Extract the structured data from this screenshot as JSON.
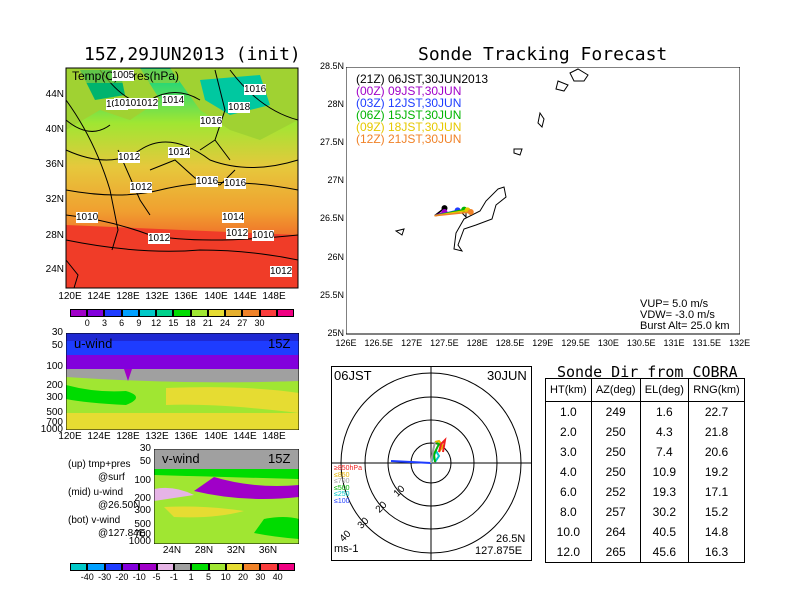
{
  "left": {
    "title": "15Z,29JUN2013 (init)",
    "map_label": "Temp(C)+Pres(hPa)",
    "lat_labels": [
      "44N",
      "40N",
      "36N",
      "32N",
      "28N",
      "24N"
    ],
    "lon_labels": [
      "120E",
      "124E",
      "128E",
      "132E",
      "136E",
      "140E",
      "144E",
      "148E"
    ],
    "isobar_labels": [
      "1005",
      "1012",
      "1010",
      "1012",
      "1014",
      "1018",
      "1016",
      "1016",
      "1012",
      "1014",
      "1012",
      "1016",
      "1016",
      "1010",
      "1014",
      "1012",
      "1012",
      "1010",
      "1012"
    ],
    "temp_colorbar": {
      "ticks": [
        "0",
        "3",
        "6",
        "9",
        "12",
        "15",
        "18",
        "21",
        "24",
        "27",
        "30"
      ],
      "colors": [
        "#a000c8",
        "#8200dc",
        "#1e3cff",
        "#00a0ff",
        "#00c8c8",
        "#00d28c",
        "#00dc00",
        "#a0e632",
        "#e6dc32",
        "#e6af2d",
        "#f08228",
        "#fa3c3c",
        "#f00082"
      ]
    },
    "u_wind": {
      "label": "u-wind",
      "time": "15Z",
      "y_ticks": [
        "30",
        "50",
        "100",
        "200",
        "300",
        "500",
        "700",
        "1000"
      ],
      "x_ticks": [
        "120E",
        "124E",
        "128E",
        "132E",
        "136E",
        "140E",
        "144E",
        "148E"
      ]
    },
    "v_wind": {
      "label": "v-wind",
      "time": "15Z",
      "y_ticks": [
        "30",
        "50",
        "100",
        "200",
        "300",
        "500",
        "700",
        "1000"
      ],
      "x_ticks": [
        "24N",
        "28N",
        "32N",
        "36N"
      ]
    },
    "legend_notes": [
      {
        "a": "(up) tmp+pres",
        "b": "@surf"
      },
      {
        "a": "(mid) u-wind",
        "b": "@26.50N"
      },
      {
        "a": "(bot) v-wind",
        "b": "@127.84E"
      }
    ],
    "wind_colorbar": {
      "ticks": [
        "-40",
        "-30",
        "-20",
        "-10",
        "-5",
        "-1",
        "1",
        "5",
        "10",
        "20",
        "30",
        "40"
      ],
      "colors": [
        "#00c8c8",
        "#00a0ff",
        "#1e3cff",
        "#8200dc",
        "#a000c8",
        "#e6b4e6",
        "#a0a0a0",
        "#00dc00",
        "#a0e632",
        "#e6dc32",
        "#f08228",
        "#fa3c3c",
        "#f00082"
      ]
    }
  },
  "tracking": {
    "title": "Sonde Tracking Forecast",
    "lat_labels": [
      "28.5N",
      "28N",
      "27.5N",
      "27N",
      "26.5N",
      "26N",
      "25.5N",
      "25N"
    ],
    "lon_labels": [
      "126E",
      "126.5E",
      "127E",
      "127.5E",
      "128E",
      "128.5E",
      "129E",
      "129.5E",
      "130E",
      "130.5E",
      "131E",
      "131.5E",
      "132E"
    ],
    "legend": [
      {
        "text": "(21Z) 06JST,30JUN2013",
        "color": "#000000"
      },
      {
        "text": "(00Z) 09JST,30JUN",
        "color": "#a000c8"
      },
      {
        "text": "(03Z) 12JST,30JUN",
        "color": "#1e3cff"
      },
      {
        "text": "(06Z) 15JST,30JUN",
        "color": "#00b400"
      },
      {
        "text": "(09Z) 18JST,30JUN",
        "color": "#e6c800"
      },
      {
        "text": "(12Z) 21JST,30JUN",
        "color": "#f08228"
      }
    ],
    "params": [
      "VUP= 5.0 m/s",
      "VDW= -3.0 m/s",
      "Burst Alt= 25.0 km"
    ]
  },
  "hodograph": {
    "time_left": "06JST",
    "time_right": "30JUN",
    "levels": [
      {
        "text": "≥850hPa",
        "color": "#f01e1e"
      },
      {
        "text": "≤850",
        "color": "#e6b400"
      },
      {
        "text": "≤700",
        "color": "#a0a0a0"
      },
      {
        "text": "≤500",
        "color": "#00b400"
      },
      {
        "text": "≤250",
        "color": "#00c8c8"
      },
      {
        "text": "≤100",
        "color": "#1e3cff"
      }
    ],
    "ring_labels": [
      "10",
      "20",
      "30",
      "40"
    ],
    "unit": "ms-1",
    "loc_lat": "26.5N",
    "loc_lon": "127.875E"
  },
  "sonde_table": {
    "title": "Sonde Dir from COBRA",
    "headers": [
      "HT(km)",
      "AZ(deg)",
      "EL(deg)",
      "RNG(km)"
    ],
    "rows": [
      [
        "1.0",
        "249",
        "1.6",
        "22.7"
      ],
      [
        "2.0",
        "250",
        "4.3",
        "21.8"
      ],
      [
        "3.0",
        "250",
        "7.4",
        "20.6"
      ],
      [
        "4.0",
        "250",
        "10.9",
        "19.2"
      ],
      [
        "6.0",
        "252",
        "19.3",
        "17.1"
      ],
      [
        "8.0",
        "257",
        "30.2",
        "15.2"
      ],
      [
        "10.0",
        "264",
        "40.5",
        "14.8"
      ],
      [
        "12.0",
        "265",
        "45.6",
        "16.3"
      ]
    ]
  },
  "chart_data": [
    {
      "type": "heatmap",
      "title": "15Z,29JUN2013 (init)",
      "subtitle": "Temp(C)+Pres(hPa)",
      "xlim": [
        120,
        149
      ],
      "ylim": [
        22,
        47
      ],
      "colorbar_ticks": [
        0,
        3,
        6,
        9,
        12,
        15,
        18,
        21,
        24,
        27,
        30
      ]
    },
    {
      "type": "heatmap",
      "title": "u-wind 15Z",
      "x_ticks": [
        "120E",
        "124E",
        "128E",
        "132E",
        "136E",
        "140E",
        "144E",
        "148E"
      ],
      "y_ticks": [
        30,
        50,
        100,
        200,
        300,
        500,
        700,
        1000
      ]
    },
    {
      "type": "heatmap",
      "title": "v-wind 15Z",
      "x_ticks": [
        "24N",
        "28N",
        "32N",
        "36N"
      ],
      "y_ticks": [
        30,
        50,
        100,
        200,
        300,
        500,
        700,
        1000
      ],
      "colorbar_ticks": [
        -40,
        -30,
        -20,
        -10,
        -5,
        -1,
        1,
        5,
        10,
        20,
        30,
        40
      ]
    },
    {
      "type": "scatter",
      "title": "Sonde Tracking Forecast",
      "xlim": [
        126,
        132
      ],
      "ylim": [
        25,
        28.5
      ],
      "series": [
        {
          "name": "(21Z) 06JST,30JUN2013",
          "x": [
            127.5
          ],
          "y": [
            26.65
          ]
        },
        {
          "name": "(00Z) 09JST,30JUN",
          "x": [
            127.5
          ],
          "y": [
            26.6
          ]
        },
        {
          "name": "(03Z) 12JST,30JUN",
          "x": [
            127.7
          ],
          "y": [
            26.62
          ]
        },
        {
          "name": "(06Z) 15JST,30JUN",
          "x": [
            127.8
          ],
          "y": [
            26.63
          ]
        },
        {
          "name": "(09Z) 18JST,30JUN",
          "x": [
            127.85
          ],
          "y": [
            26.62
          ]
        },
        {
          "name": "(12Z) 21JST,30JUN",
          "x": [
            127.9
          ],
          "y": [
            26.6
          ]
        }
      ]
    },
    {
      "type": "table",
      "title": "Sonde Dir from COBRA",
      "columns": [
        "HT(km)",
        "AZ(deg)",
        "EL(deg)",
        "RNG(km)"
      ],
      "rows": [
        [
          1.0,
          249,
          1.6,
          22.7
        ],
        [
          2.0,
          250,
          4.3,
          21.8
        ],
        [
          3.0,
          250,
          7.4,
          20.6
        ],
        [
          4.0,
          250,
          10.9,
          19.2
        ],
        [
          6.0,
          252,
          19.3,
          17.1
        ],
        [
          8.0,
          257,
          30.2,
          15.2
        ],
        [
          10.0,
          264,
          40.5,
          14.8
        ],
        [
          12.0,
          265,
          45.6,
          16.3
        ]
      ]
    }
  ]
}
